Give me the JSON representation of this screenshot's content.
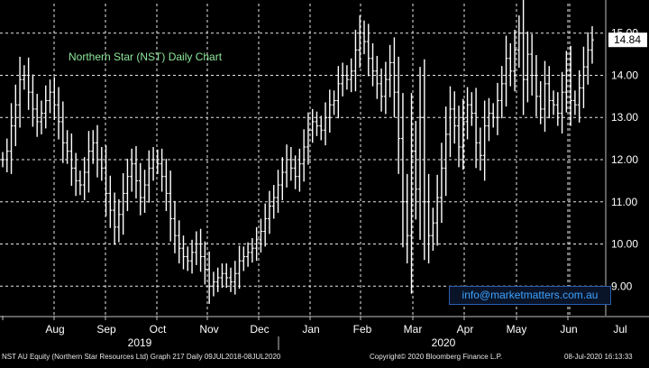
{
  "chart_data": {
    "type": "candlestick",
    "title": "Northern Star (NST) Daily Chart",
    "ylim": [
      8.3,
      15.7
    ],
    "yticks": [
      "9.00",
      "10.00",
      "11.00",
      "12.00",
      "13.00",
      "14.00",
      "15.00"
    ],
    "ytick_values": [
      9,
      10,
      11,
      12,
      13,
      14,
      15
    ],
    "last_price": "14.84",
    "last_price_value": 14.84,
    "months": [
      {
        "label": "Aug",
        "index": 0
      },
      {
        "label": "Sep",
        "index": 1
      },
      {
        "label": "Oct",
        "index": 2
      },
      {
        "label": "Nov",
        "index": 3
      },
      {
        "label": "Dec",
        "index": 4
      },
      {
        "label": "Jan",
        "index": 5
      },
      {
        "label": "Feb",
        "index": 6
      },
      {
        "label": "Mar",
        "index": 7
      },
      {
        "label": "Apr",
        "index": 8
      },
      {
        "label": "May",
        "index": 9
      },
      {
        "label": "Jun",
        "index": 10
      },
      {
        "label": "Jul",
        "index": 11
      }
    ],
    "years": [
      "2019",
      "2020"
    ],
    "close_series": [
      12.0,
      12.2,
      12.8,
      13.3,
      13.9,
      14.0,
      13.6,
      13.2,
      12.9,
      13.1,
      13.4,
      13.6,
      13.3,
      12.9,
      12.4,
      12.2,
      11.8,
      11.5,
      11.4,
      11.7,
      12.2,
      12.4,
      12.0,
      11.8,
      11.2,
      10.8,
      10.4,
      10.7,
      11.2,
      11.6,
      11.9,
      11.5,
      11.1,
      11.4,
      11.8,
      12.0,
      11.9,
      11.6,
      11.2,
      10.6,
      10.2,
      9.9,
      9.7,
      9.6,
      9.8,
      10.0,
      9.7,
      9.4,
      9.0,
      9.1,
      9.2,
      9.3,
      9.2,
      9.1,
      9.3,
      9.6,
      9.7,
      9.8,
      9.9,
      10.1,
      10.3,
      10.6,
      10.9,
      11.1,
      11.4,
      11.7,
      12.0,
      11.8,
      11.6,
      11.9,
      12.3,
      12.7,
      12.9,
      12.8,
      12.7,
      13.0,
      13.3,
      13.4,
      13.8,
      14.0,
      13.9,
      14.1,
      14.6,
      15.0,
      14.8,
      14.4,
      14.1,
      13.8,
      13.5,
      13.9,
      14.3,
      13.6,
      12.5,
      11.0,
      10.2,
      12.2,
      11.3,
      13.0,
      11.0,
      10.2,
      10.5,
      11.1,
      11.8,
      12.6,
      13.2,
      12.8,
      12.3,
      12.9,
      13.3,
      13.1,
      12.4,
      12.1,
      12.8,
      13.1,
      13.0,
      13.4,
      13.8,
      14.4,
      14.1,
      14.6,
      15.0,
      13.9,
      14.5,
      14.0,
      13.5,
      13.2,
      13.8,
      13.4,
      13.3,
      13.1,
      13.6,
      14.1,
      13.4,
      13.3,
      13.7,
      14.2,
      14.6,
      14.84
    ]
  },
  "watermark": "info@marketmatters.com.au",
  "footer": {
    "left": "NST AU Equity (Northern Star Resources Ltd) Graph 217  Daily 09JUL2018-08JUL2020",
    "center": "Copyright© 2020 Bloomberg Finance L.P.",
    "right": "08-Jul-2020 16:13:33"
  },
  "colors": {
    "background": "#000000",
    "grid": "#e8e8e8",
    "bars": "#ffffff",
    "title": "#8ee89a",
    "last_price_box": "#ffffff",
    "watermark": "#3ba2ff"
  }
}
